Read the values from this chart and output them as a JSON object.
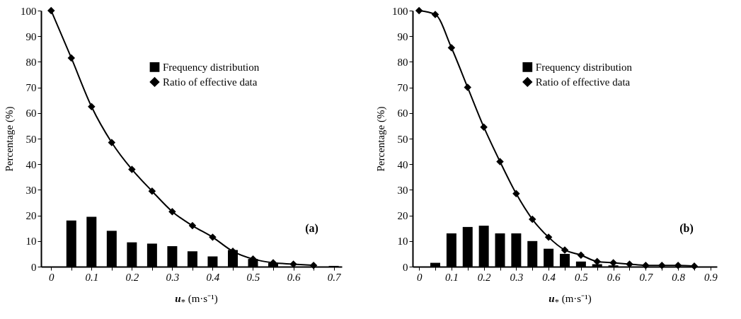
{
  "chart_data": [
    {
      "type": "bar",
      "xlabel": "u$_{*}$ (m·s⁻¹)",
      "ylabel": "Percentage (%)",
      "annotations": [
        "(a)"
      ],
      "legend": "top right",
      "grid": false,
      "xlim": [
        -0.025,
        0.72
      ],
      "xticks": [
        0,
        {
          "value": 0.05,
          "label": null
        },
        0.1,
        {
          "value": 0.15,
          "label": null
        },
        0.2,
        {
          "value": 0.25,
          "label": null
        },
        0.3,
        {
          "value": 0.35,
          "label": null
        },
        0.4,
        {
          "value": 0.45,
          "label": null
        },
        0.5,
        {
          "value": 0.55,
          "label": null
        },
        0.6,
        {
          "value": 0.65,
          "label": null
        },
        0.7
      ],
      "ylim": [
        0,
        100
      ],
      "yticks": [
        0,
        10,
        20,
        30,
        40,
        50,
        60,
        70,
        80,
        90,
        100
      ],
      "series": [
        {
          "name": "Frequency distribution",
          "color": "#000000",
          "x": [
            0.05,
            0.1,
            0.15,
            0.2,
            0.25,
            0.3,
            0.35,
            0.4,
            0.45,
            0.5,
            0.55,
            0.6,
            0.65,
            0.7
          ],
          "values": [
            18,
            19.5,
            14,
            9.5,
            9,
            8,
            6,
            4,
            6.5,
            3,
            1.5,
            null,
            null,
            0.3
          ]
        },
        {
          "name": "Ratio of effective data",
          "type": "line",
          "marker": "diamond",
          "color": "#000000",
          "x": [
            0,
            0.05,
            0.1,
            0.15,
            0.2,
            0.25,
            0.3,
            0.35,
            0.4,
            0.45,
            0.5,
            0.55,
            0.6,
            0.65
          ],
          "values": [
            100,
            81.5,
            62.5,
            48.5,
            38,
            29.5,
            21.5,
            16,
            11.5,
            6,
            3,
            1.5,
            1,
            0.5
          ]
        }
      ]
    },
    {
      "type": "bar",
      "xlabel": "u$_{*}$ (m·s⁻¹)",
      "ylabel": "Percentage (%)",
      "annotations": [
        "(b)"
      ],
      "legend": "top right",
      "grid": false,
      "xlim": [
        -0.02,
        0.92
      ],
      "xticks": [
        0,
        {
          "value": 0.05,
          "label": null
        },
        0.1,
        {
          "value": 0.15,
          "label": null
        },
        0.2,
        {
          "value": 0.25,
          "label": null
        },
        0.3,
        {
          "value": 0.35,
          "label": null
        },
        0.4,
        {
          "value": 0.45,
          "label": null
        },
        0.5,
        {
          "value": 0.55,
          "label": null
        },
        0.6,
        {
          "value": 0.65,
          "label": null
        },
        0.7,
        {
          "value": 0.75,
          "label": null
        },
        0.8,
        {
          "value": 0.85,
          "label": null
        },
        0.9
      ],
      "ylim": [
        0,
        100
      ],
      "yticks": [
        0,
        10,
        20,
        30,
        40,
        50,
        60,
        70,
        80,
        90,
        100
      ],
      "series": [
        {
          "name": "Frequency distribution",
          "color": "#000000",
          "x": [
            0.05,
            0.1,
            0.15,
            0.2,
            0.25,
            0.3,
            0.35,
            0.4,
            0.45,
            0.5,
            0.55,
            0.6
          ],
          "values": [
            1.5,
            13,
            15.5,
            16,
            13,
            13,
            10,
            7,
            5,
            2,
            1,
            0.5
          ]
        },
        {
          "name": "Ratio of effective data",
          "type": "line",
          "marker": "diamond",
          "color": "#000000",
          "x": [
            0,
            0.05,
            0.1,
            0.15,
            0.2,
            0.25,
            0.3,
            0.35,
            0.4,
            0.45,
            0.5,
            0.55,
            0.6,
            0.65,
            0.7,
            0.75,
            0.8,
            0.85
          ],
          "values": [
            100,
            98.5,
            85.5,
            70,
            54.5,
            41,
            28.5,
            18.5,
            11.5,
            6.5,
            4.5,
            2,
            1.5,
            1,
            0.5,
            0.5,
            0.5,
            0.2
          ]
        }
      ]
    }
  ]
}
